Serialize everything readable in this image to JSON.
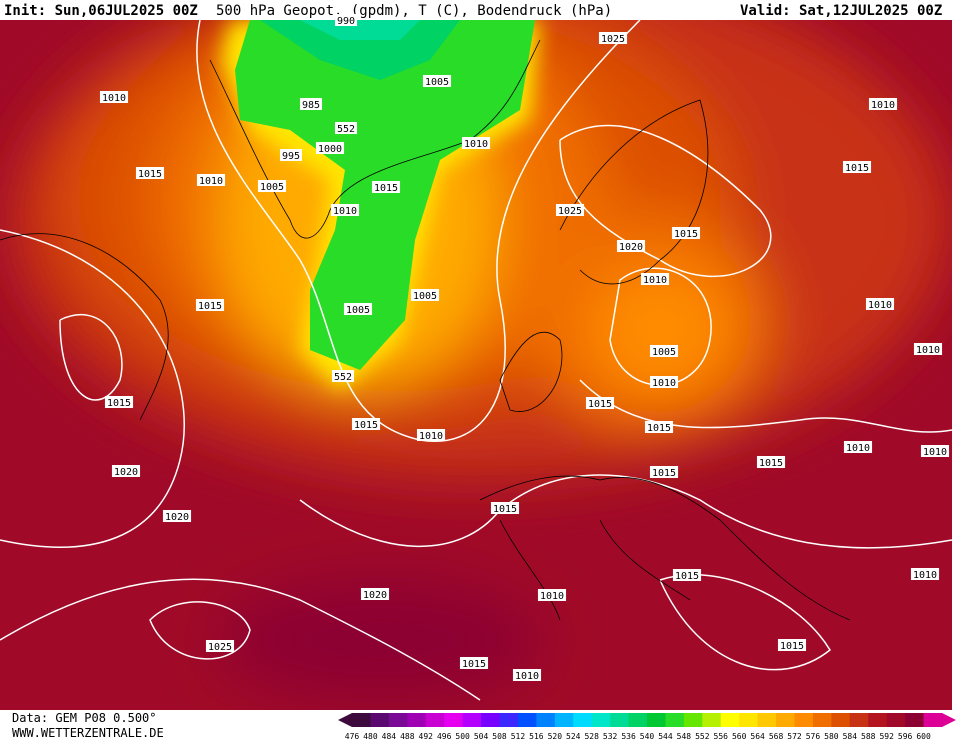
{
  "header": {
    "init": "Init: Sun,06JUL2025 00Z",
    "title": "500 hPa Geopot. (gpdm), T (C), Bodendruck (hPa)",
    "valid": "Valid: Sat,12JUL2025 00Z"
  },
  "isobar_labels": [
    990,
    1025,
    1010,
    1005,
    1010,
    985,
    552,
    1000,
    995,
    1010,
    1015,
    1010,
    1005,
    1015,
    1015,
    1010,
    1025,
    1015,
    1020,
    1010,
    1005,
    1005,
    1015,
    1010,
    1005,
    1010,
    552,
    1010,
    1015,
    1015,
    1015,
    1010,
    1015,
    1010,
    1010,
    1015,
    1015,
    1020,
    1015,
    1020,
    1015,
    1010,
    1020,
    1010,
    1025,
    1015,
    1015,
    1010
  ],
  "legend": {
    "values": [
      476,
      480,
      484,
      488,
      492,
      496,
      500,
      504,
      508,
      512,
      516,
      520,
      524,
      528,
      532,
      536,
      540,
      544,
      548,
      552,
      556,
      560,
      564,
      568,
      572,
      576,
      580,
      584,
      588,
      592,
      596,
      600
    ],
    "colors": [
      "#3c0a3c",
      "#5a0a6e",
      "#7a0a96",
      "#a000b4",
      "#c800d2",
      "#e600f0",
      "#b400ff",
      "#7800ff",
      "#3c28ff",
      "#0050ff",
      "#0082ff",
      "#00b4ff",
      "#00dcff",
      "#00e6c8",
      "#00dc96",
      "#00d264",
      "#00c832",
      "#28dc28",
      "#64e600",
      "#b4f000",
      "#ffff00",
      "#ffe600",
      "#ffc800",
      "#ffaa00",
      "#ff8c00",
      "#f06e00",
      "#dc5000",
      "#c83214",
      "#b4141e",
      "#a00a28",
      "#8c0032",
      "#dc0096"
    ]
  },
  "footer": {
    "source": "Data: GEM P08 0.500°",
    "site": "WWW.WETTERZENTRALE.DE"
  }
}
